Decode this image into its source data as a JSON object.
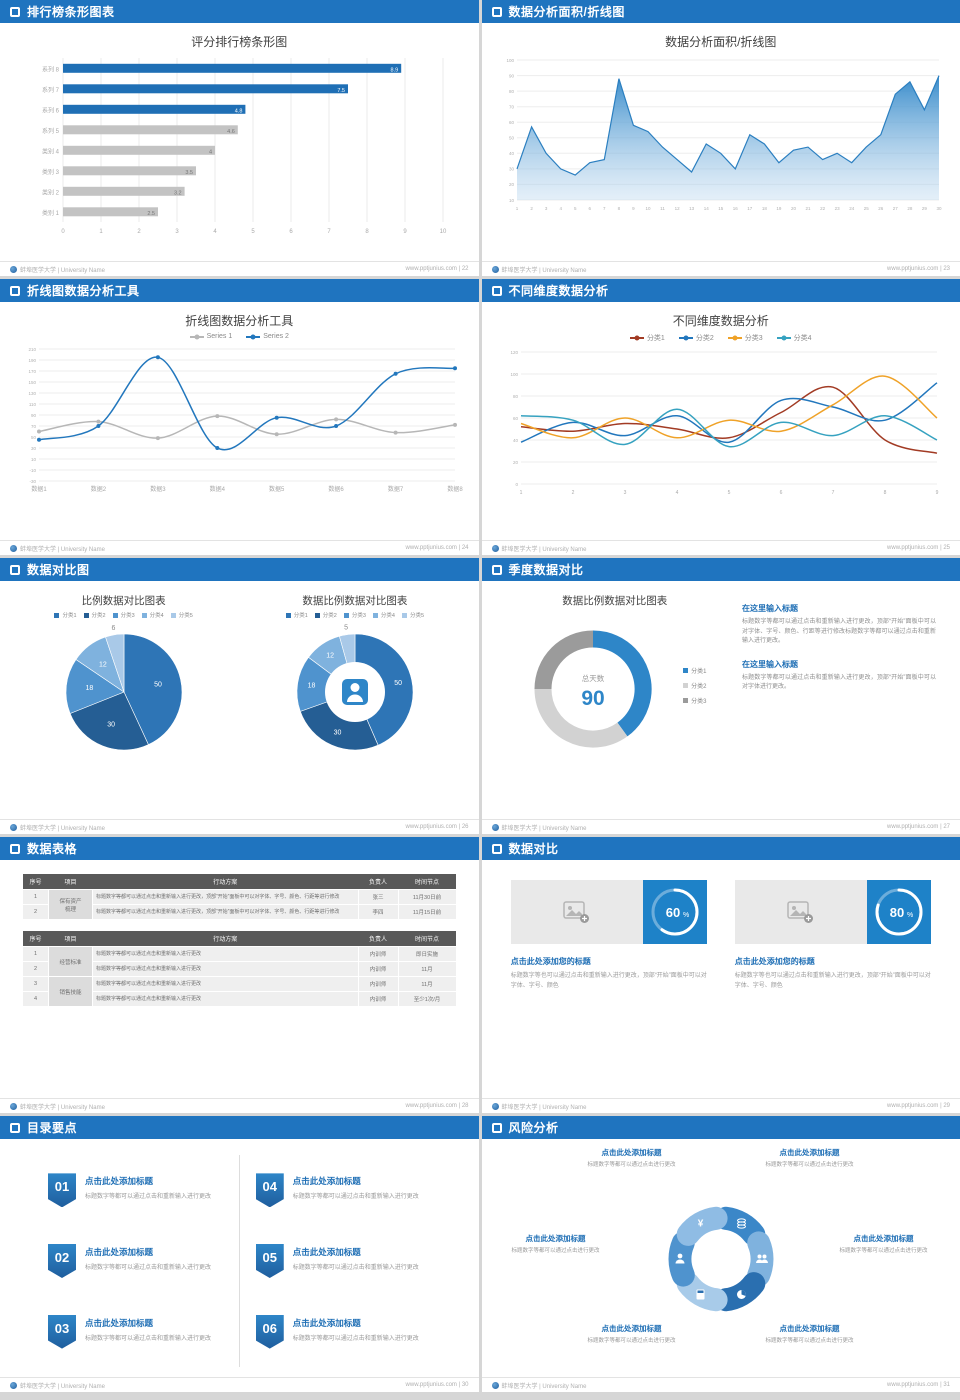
{
  "footer": {
    "brand": "蚌埠医学大学 | University Name",
    "site": "www.pptjunius.com",
    "sep": " | "
  },
  "theme": {
    "header_blue": "#1f74bf",
    "accent": "#1f6fb5",
    "bar_gray": "#c3c3c3",
    "text_gray": "#8a8a8a"
  },
  "slides": [
    {
      "header": "排行榜条形图表",
      "page": "22"
    },
    {
      "header": "数据分析面积/折线图",
      "page": "23"
    },
    {
      "header": "折线图数据分析工具",
      "page": "24"
    },
    {
      "header": "不同维度数据分析",
      "page": "25"
    },
    {
      "header": "数据对比图",
      "page": "26"
    },
    {
      "header": "季度数据对比",
      "page": "27"
    },
    {
      "header": "数据表格",
      "page": "28"
    },
    {
      "header": "数据对比",
      "page": "29"
    },
    {
      "header": "目录要点",
      "page": "30"
    },
    {
      "header": "风险分析",
      "page": "31"
    }
  ],
  "chart_data": [
    {
      "type": "bar",
      "variant": "barh",
      "title": "评分排行榜条形图",
      "categories": [
        "系列 8",
        "系列 7",
        "系列 6",
        "系列 5",
        "类别 4",
        "类别 3",
        "类别 2",
        "类别 1"
      ],
      "values": [
        8.9,
        7.5,
        4.8,
        4.6,
        4,
        3.5,
        3.2,
        2.5
      ],
      "bar_colors": [
        "#1f6fb5",
        "#1f6fb5",
        "#1f6fb5",
        "#c3c3c3",
        "#c3c3c3",
        "#c3c3c3",
        "#c3c3c3",
        "#c3c3c3"
      ],
      "xlim": [
        0,
        10
      ],
      "xticks": [
        0,
        1,
        2,
        3,
        4,
        5,
        6,
        7,
        8,
        9,
        10
      ]
    },
    {
      "type": "area",
      "variant": "area",
      "title": "数据分析面积/折线图",
      "x_range": [
        1,
        30
      ],
      "values": [
        30,
        57,
        40,
        30,
        26,
        34,
        36,
        88,
        58,
        54,
        44,
        36,
        28,
        46,
        40,
        30,
        52,
        46,
        34,
        42,
        44,
        36,
        40,
        34,
        44,
        52,
        78,
        86,
        68,
        90
      ],
      "ylim": [
        10,
        100
      ],
      "yticks": [
        10,
        20,
        30,
        40,
        50,
        60,
        70,
        80,
        90,
        100
      ]
    },
    {
      "type": "line",
      "variant": "line2",
      "title": "折线图数据分析工具",
      "markers": true,
      "categories": [
        "数据1",
        "数据2",
        "数据3",
        "数据4",
        "数据5",
        "数据6",
        "数据7",
        "数据8"
      ],
      "series": [
        {
          "name": "Series 1",
          "color": "#b7b7b7",
          "values": [
            60,
            78,
            48,
            88,
            55,
            82,
            58,
            72
          ]
        },
        {
          "name": "Series 2",
          "color": "#2277bd",
          "values": [
            45,
            70,
            195,
            30,
            85,
            70,
            165,
            175
          ]
        }
      ],
      "ylim": [
        -30,
        210
      ],
      "ytick_step": 20
    },
    {
      "type": "line",
      "variant": "multiline",
      "title": "不同维度数据分析",
      "x_range": [
        1,
        9
      ],
      "series": [
        {
          "name": "分类1",
          "color": "#a23b24",
          "values": [
            52,
            48,
            55,
            50,
            42,
            65,
            88,
            40,
            28
          ]
        },
        {
          "name": "分类2",
          "color": "#2277bd",
          "values": [
            38,
            56,
            44,
            62,
            38,
            76,
            70,
            58,
            92
          ]
        },
        {
          "name": "分类3",
          "color": "#efa228",
          "values": [
            55,
            42,
            60,
            42,
            58,
            48,
            72,
            98,
            60
          ]
        },
        {
          "name": "分类4",
          "color": "#36a2c0",
          "values": [
            62,
            58,
            36,
            68,
            34,
            56,
            44,
            62,
            40
          ]
        }
      ],
      "ylim": [
        0,
        120
      ],
      "ytick_step": 20
    },
    {
      "type": "pie",
      "variant": "pies",
      "charts": [
        {
          "title": "比例数据对比图表",
          "donut": false,
          "legend": [
            "分类1",
            "分类2",
            "分类3",
            "分类4",
            "分类5"
          ],
          "values": [
            50,
            30,
            18,
            12,
            6
          ],
          "colors": [
            "#2e75b6",
            "#255e94",
            "#4f93ce",
            "#7fb2de",
            "#a9c9e8"
          ]
        },
        {
          "title": "数据比例数据对比图表",
          "donut": true,
          "center_icon": "person-icon",
          "legend": [
            "分类1",
            "分类2",
            "分类3",
            "分类4",
            "分类5"
          ],
          "values": [
            50,
            30,
            18,
            12,
            5
          ],
          "colors": [
            "#2e75b6",
            "#255e94",
            "#4f93ce",
            "#7fb2de",
            "#a9c9e8"
          ]
        }
      ]
    },
    {
      "type": "pie",
      "variant": "donutstat",
      "title": "数据比例数据对比图表",
      "center_label": "总天数",
      "center_value": "90",
      "legend": [
        "分类1",
        "分类2",
        "分类3"
      ],
      "values": [
        40,
        35,
        25
      ],
      "colors": [
        "#2e86c8",
        "#d2d2d2",
        "#9b9b9b"
      ],
      "text_blocks": [
        {
          "heading": "在这里输入标题",
          "body": "标题数字等都可以通过点击和重新输入进行更改，顶部“开始”面板中可以对字体、字号、颜色、行距等进行修改标题数字等都可以通过点击和重新输入进行更改。"
        },
        {
          "heading": "在这里输入标题",
          "body": "标题数字等都可以通过点击和重新输入进行更改，顶部“开始”面板中可以对字体进行更改。"
        }
      ]
    },
    {
      "type": "table",
      "variant": "tables",
      "tables": [
        {
          "headers": [
            "序号",
            "项目",
            "行动方案",
            "负责人",
            "时间节点"
          ],
          "rows": [
            [
              "1",
              "保有资产\n梳理",
              "标题数字等都可以通过点击和重新输入进行更改，顶部“开始”面板中可以对字体、字号、颜色、行距等进行修改",
              "张三",
              "11月30日前"
            ],
            [
              "2",
              "",
              "标题数字等都可以通过点击和重新输入进行更改，顶部“开始”面板中可以对字体、字号、颜色、行距等进行修改",
              "李四",
              "11月15日前"
            ]
          ]
        },
        {
          "headers": [
            "序号",
            "项目",
            "行动方案",
            "负责人",
            "时间节点"
          ],
          "rows": [
            [
              "1",
              "经营标准",
              "标题数字等都可以通过点击和重新输入进行更改",
              "内训师",
              "即日实施"
            ],
            [
              "2",
              "",
              "标题数字等都可以通过点击和重新输入进行更改",
              "内训师",
              "11月"
            ],
            [
              "3",
              "销售技能",
              "标题数字等都可以通过点击和重新输入进行更改",
              "内训师",
              "11月"
            ],
            [
              "4",
              "",
              "标题数字等都可以通过点击和重新输入进行更改",
              "内训师",
              "至少1次/月"
            ]
          ]
        }
      ]
    },
    {
      "type": "pie",
      "variant": "progress",
      "items": [
        {
          "percent": 60,
          "title": "点击此处添加您的标题",
          "body": "标题数字等也可以通过点击和重新输入进行更改，顶部“开始”面板中可以对字体、字号、颜色"
        },
        {
          "percent": 80,
          "title": "点击此处添加您的标题",
          "body": "标题数字等也可以通过点击和重新输入进行更改，顶部“开始”面板中可以对字体、字号、颜色"
        }
      ]
    },
    {
      "type": "other",
      "variant": "toc",
      "items": [
        {
          "num": "01",
          "title": "点击此处添加标题",
          "body": "标题数字等都可以通过点击和重新输入进行更改"
        },
        {
          "num": "02",
          "title": "点击此处添加标题",
          "body": "标题数字等都可以通过点击和重新输入进行更改"
        },
        {
          "num": "03",
          "title": "点击此处添加标题",
          "body": "标题数字等都可以通过点击和重新输入进行更改"
        },
        {
          "num": "04",
          "title": "点击此处添加标题",
          "body": "标题数字等都可以通过点击和重新输入进行更改"
        },
        {
          "num": "05",
          "title": "点击此处添加标题",
          "body": "标题数字等都可以通过点击和重新输入进行更改"
        },
        {
          "num": "06",
          "title": "点击此处添加标题",
          "body": "标题数字等都可以通过点击和重新输入进行更改"
        }
      ]
    },
    {
      "type": "other",
      "variant": "wheel",
      "labels": [
        {
          "pos": "tl",
          "title": "点击此处添加标题",
          "body": "标题数字等都可以通过点击进行更改"
        },
        {
          "pos": "tr",
          "title": "点击此处添加标题",
          "body": "标题数字等都可以通过点击进行更改"
        },
        {
          "pos": "ml",
          "title": "点击此处添加标题",
          "body": "标题数字等都可以通过点击进行更改"
        },
        {
          "pos": "mr",
          "title": "点击此处添加标题",
          "body": "标题数字等都可以通过点击进行更改"
        },
        {
          "pos": "bl",
          "title": "点击此处添加标题",
          "body": "标题数字等都可以通过点击进行更改"
        },
        {
          "pos": "br",
          "title": "点击此处添加标题",
          "body": "标题数字等都可以通过点击进行更改"
        }
      ],
      "icons": [
        "coins",
        "people",
        "pie-chart",
        "calculator",
        "person",
        "money-bag"
      ],
      "colors": [
        "#3b87c8",
        "#7fb2de",
        "#2a6fb0",
        "#a8cbe9",
        "#4f93ce",
        "#8fbce4"
      ]
    }
  ]
}
